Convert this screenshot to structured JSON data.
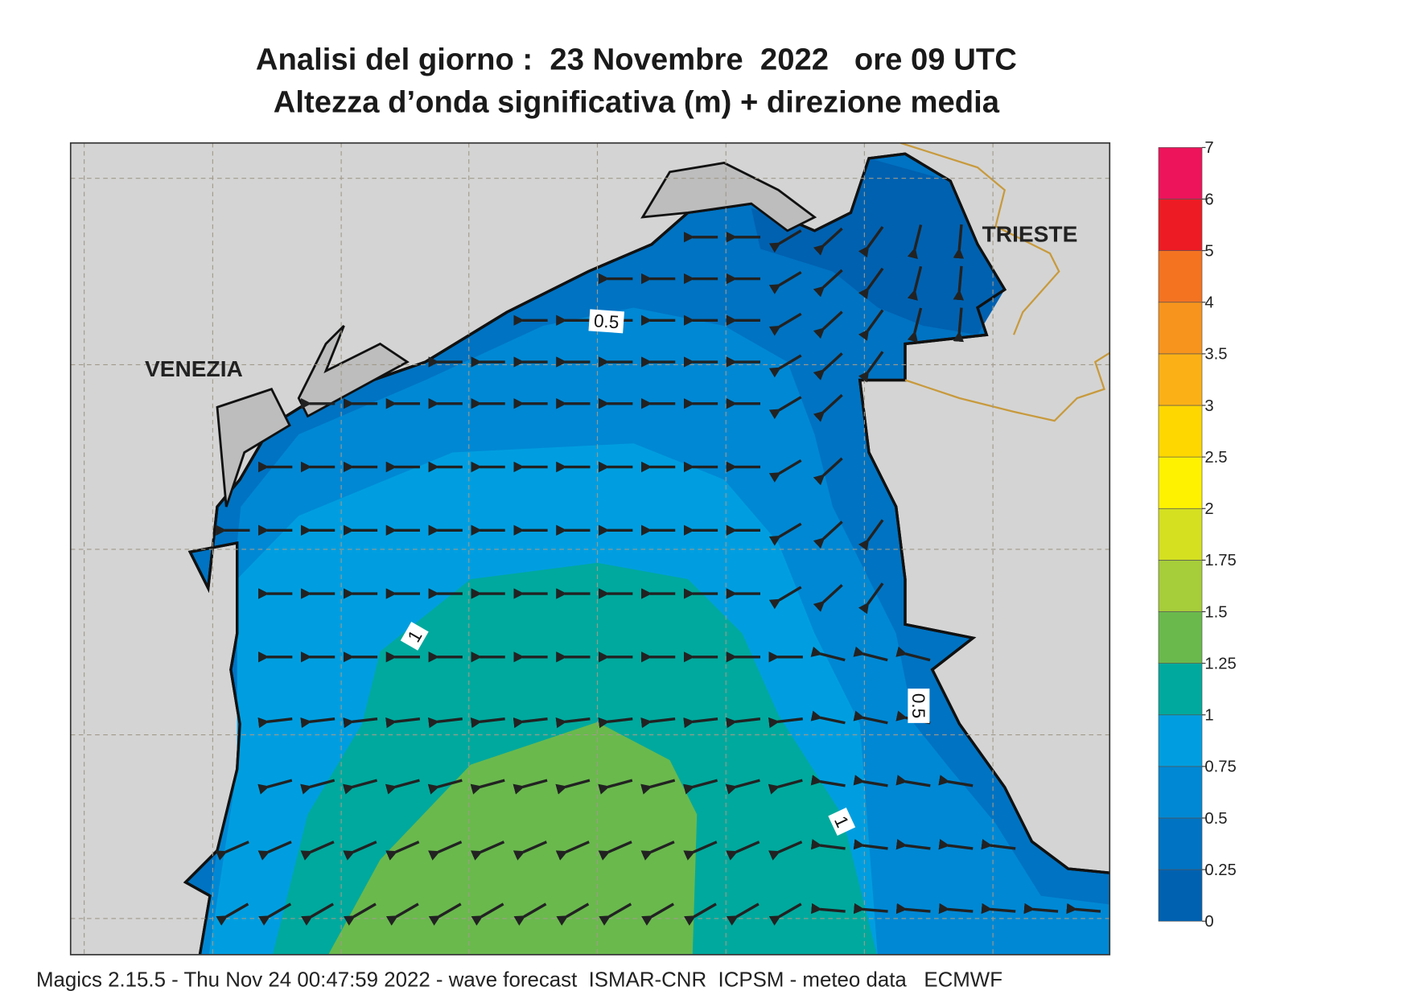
{
  "header": {
    "title": "Analisi del giorno :  23 Novembre  2022   ore 09 UTC",
    "subtitle": "Altezza d’onda significativa (m) + direzione media"
  },
  "map": {
    "places": [
      "VENEZIA",
      "TRIESTE"
    ],
    "contour_labels": [
      0.5,
      1,
      0.5,
      1
    ]
  },
  "legend": {
    "levels": [
      0,
      0.25,
      0.5,
      0.75,
      1,
      1.25,
      1.5,
      1.75,
      2,
      2.5,
      3,
      3.5,
      4,
      5,
      6,
      7
    ],
    "colors": [
      "#0061b0",
      "#0073c2",
      "#0088d4",
      "#009ee0",
      "#00a99d",
      "#6ab94d",
      "#a6cd3a",
      "#d4e020",
      "#fff200",
      "#ffd700",
      "#fbb116",
      "#f7941d",
      "#f47321",
      "#ed1c24",
      "#ed145b"
    ]
  },
  "footer": "Magics 2.15.5 - Thu Nov 24 00:47:59 2022 - wave forecast  ISMAR-CNR  ICPSM - meteo data   ECMWF"
}
